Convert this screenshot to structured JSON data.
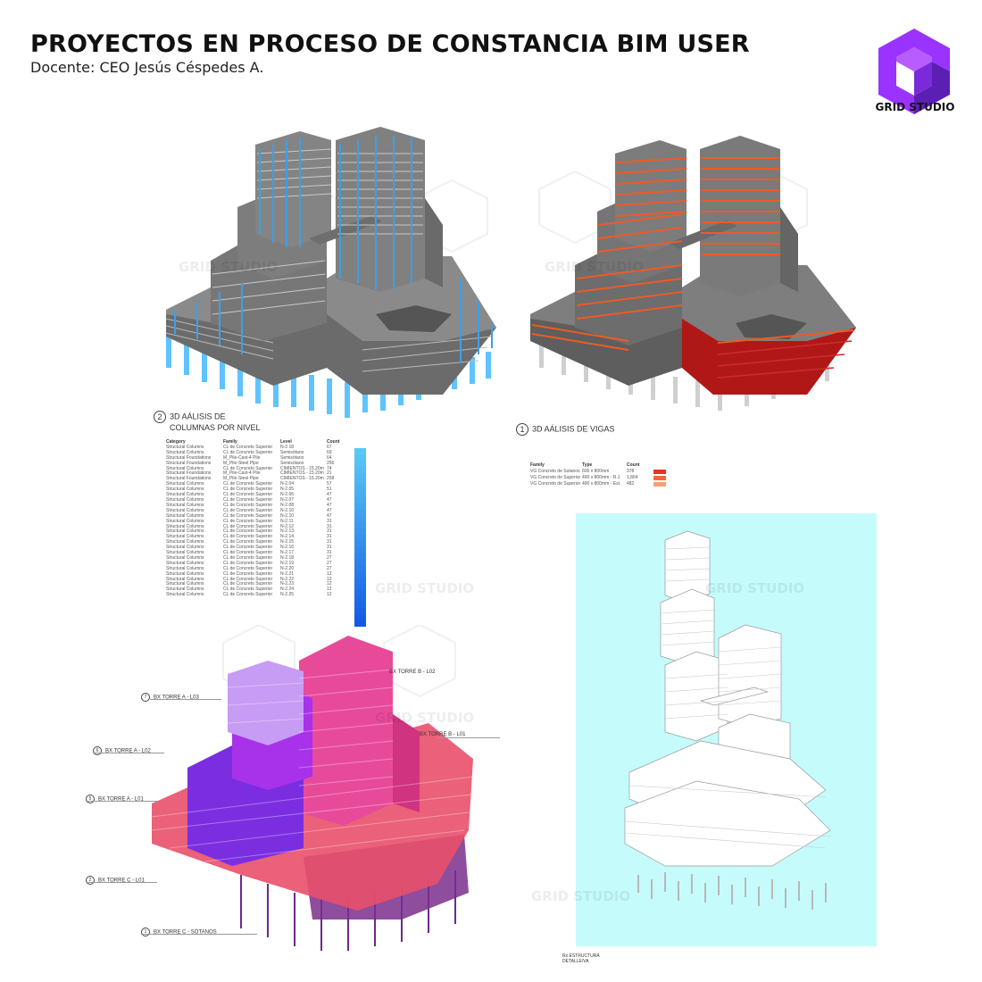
{
  "header": {
    "title": "PROYECTOS EN PROCESO DE CONSTANCIA BIM USER",
    "subtitle": "Docente: CEO Jesús Céspedes A."
  },
  "brand": {
    "name": "GRID STUDIO",
    "logo_icon": "isometric-cube-logo-icon",
    "colors": {
      "logo_light": "#9b33ff",
      "logo_dark": "#5b1fb3"
    }
  },
  "watermark": "GRID STUDIO",
  "panels": {
    "columns": {
      "number": "2",
      "title_line1": "3D AÁLISIS DE",
      "title_line2": "COLUMNAS POR NIVEL",
      "accent": "#3aa0e8",
      "schedule_headers": [
        "Category",
        "Family",
        "Level",
        "Count"
      ],
      "schedule_rows": [
        [
          "Structural Columns",
          "CL de Concreto Superior",
          "N-2.18",
          "67"
        ],
        [
          "Structural Columns",
          "CL de Concreto Superior",
          "Semisótano",
          "69"
        ],
        [
          "Structural Foundations",
          "M_Pile-Cast-4 Pile",
          "Semisótano",
          "64"
        ],
        [
          "Structural Foundations",
          "M_Pile-Steel Pipe",
          "Semisótano",
          "256"
        ],
        [
          "Structural Columns",
          "CL de Concreto Superior",
          "CIMIENTOS - 15.20m",
          "74"
        ],
        [
          "Structural Foundations",
          "M_Pile-Cast-4 Pile",
          "CIMIENTOS - 15.20m",
          "21"
        ],
        [
          "Structural Foundations",
          "M_Pile-Steel Pipe",
          "CIMIENTOS - 15.20m",
          "258"
        ],
        [
          "Structural Columns",
          "CL de Concreto Superior",
          "N-2.04",
          "57"
        ],
        [
          "Structural Columns",
          "CL de Concreto Superior",
          "N-2.05",
          "51"
        ],
        [
          "Structural Columns",
          "CL de Concreto Superior",
          "N-2.06",
          "47"
        ],
        [
          "Structural Columns",
          "CL de Concreto Superior",
          "N-2.07",
          "47"
        ],
        [
          "Structural Columns",
          "CL de Concreto Superior",
          "N-2.08",
          "47"
        ],
        [
          "Structural Columns",
          "CL de Concreto Superior",
          "N-2.10",
          "47"
        ],
        [
          "Structural Columns",
          "CL de Concreto Superior",
          "N-2.10",
          "47"
        ],
        [
          "Structural Columns",
          "CL de Concreto Superior",
          "N-2.11",
          "31"
        ],
        [
          "Structural Columns",
          "CL de Concreto Superior",
          "N-2.12",
          "31"
        ],
        [
          "Structural Columns",
          "CL de Concreto Superior",
          "N-2.13",
          "31"
        ],
        [
          "Structural Columns",
          "CL de Concreto Superior",
          "N-2.14",
          "31"
        ],
        [
          "Structural Columns",
          "CL de Concreto Superior",
          "N-2.15",
          "31"
        ],
        [
          "Structural Columns",
          "CL de Concreto Superior",
          "N-2.16",
          "31"
        ],
        [
          "Structural Columns",
          "CL de Concreto Superior",
          "N-2.17",
          "31"
        ],
        [
          "Structural Columns",
          "CL de Concreto Superior",
          "N-2.18",
          "27"
        ],
        [
          "Structural Columns",
          "CL de Concreto Superior",
          "N-2.19",
          "27"
        ],
        [
          "Structural Columns",
          "CL de Concreto Superior",
          "N-2.20",
          "27"
        ],
        [
          "Structural Columns",
          "CL de Concreto Superior",
          "N-2.21",
          "12"
        ],
        [
          "Structural Columns",
          "CL de Concreto Superior",
          "N-2.22",
          "12"
        ],
        [
          "Structural Columns",
          "CL de Concreto Superior",
          "N-2.23",
          "12"
        ],
        [
          "Structural Columns",
          "CL de Concreto Superior",
          "N-2.24",
          "12"
        ],
        [
          "Structural Columns",
          "CL de Concreto Superior",
          "N-2.25",
          "12"
        ]
      ]
    },
    "beams": {
      "number": "1",
      "title": "3D AÁLISIS DE VIGAS",
      "accent": "#e8521e",
      "legend_headers": [
        "Family",
        "Type",
        "Count"
      ],
      "legend_rows": [
        {
          "family": "VG Concreto de Sotanos",
          "type": "600 x 800mm",
          "count": "378",
          "color": "#e8331e"
        },
        {
          "family": "VG Concreto de Superior",
          "type": "400 x 800mm - R.1",
          "count": "1,864",
          "color": "#f0683a"
        },
        {
          "family": "VG Concreto de Superior",
          "type": "400 x 800mm - Est",
          "count": "482",
          "color": "#f5a070"
        }
      ]
    },
    "towers": {
      "levels": [
        {
          "number": "7",
          "label": "BX TORRE A - L03"
        },
        {
          "number": "6",
          "label": "BX TORRE A - L02"
        },
        {
          "number": "5",
          "label": "BX TORRE A - L01"
        },
        {
          "number": "2",
          "label": "BX TORRE C - L01"
        },
        {
          "number": "1",
          "label": "BX TORRE C - SÓTANOS"
        },
        {
          "number": "",
          "label": "BX TORRE B - L02"
        },
        {
          "number": "",
          "label": "BX TORRE B - L01"
        }
      ],
      "colors": {
        "tower_a_top": "#c79cf5",
        "tower_a": "#a02ee0",
        "tower_c": "#e84a6a",
        "tower_b": "#e8388a",
        "basement": "#6a2a8a"
      }
    },
    "exploded": {
      "background": "#c6fbfb",
      "caption_line1": "Rx ESTRUCTURA",
      "caption_line2": "DETALLE/VA"
    }
  }
}
